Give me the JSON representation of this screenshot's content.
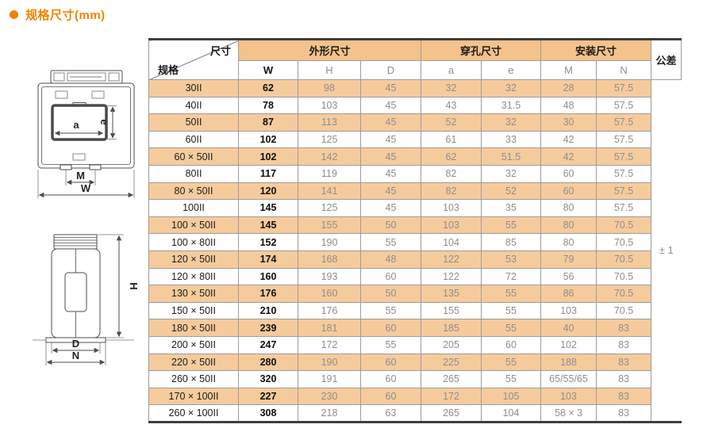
{
  "page_title": "规格尺寸(mm)",
  "table": {
    "corner": {
      "top_right": "尺寸",
      "bottom_left": "规格"
    },
    "col_groups": [
      {
        "label": "外形尺寸",
        "cols": [
          "W",
          "H",
          "D"
        ]
      },
      {
        "label": "穿孔尺寸",
        "cols": [
          "a",
          "e"
        ]
      },
      {
        "label": "安装尺寸",
        "cols": [
          "M",
          "N"
        ]
      }
    ],
    "tolerance_header": "公差",
    "tolerance_value": "± 1",
    "rows": [
      {
        "spec": "30II",
        "values": [
          "62",
          "98",
          "45",
          "32",
          "32",
          "28",
          "57.5"
        ]
      },
      {
        "spec": "40II",
        "values": [
          "78",
          "103",
          "45",
          "43",
          "31.5",
          "48",
          "57.5"
        ]
      },
      {
        "spec": "50II",
        "values": [
          "87",
          "113",
          "45",
          "52",
          "32",
          "30",
          "57.5"
        ]
      },
      {
        "spec": "60II",
        "values": [
          "102",
          "125",
          "45",
          "61",
          "33",
          "42",
          "57.5"
        ]
      },
      {
        "spec": "60 × 50II",
        "values": [
          "102",
          "142",
          "45",
          "62",
          "51.5",
          "42",
          "57.5"
        ]
      },
      {
        "spec": "80II",
        "values": [
          "117",
          "119",
          "45",
          "82",
          "32",
          "60",
          "57.5"
        ]
      },
      {
        "spec": "80 × 50II",
        "values": [
          "120",
          "141",
          "45",
          "82",
          "52",
          "60",
          "57.5"
        ]
      },
      {
        "spec": "100II",
        "values": [
          "145",
          "125",
          "45",
          "103",
          "35",
          "80",
          "57.5"
        ]
      },
      {
        "spec": "100 × 50II",
        "values": [
          "145",
          "155",
          "50",
          "103",
          "55",
          "80",
          "70.5"
        ]
      },
      {
        "spec": "100 × 80II",
        "values": [
          "152",
          "190",
          "55",
          "104",
          "85",
          "80",
          "70.5"
        ]
      },
      {
        "spec": "120 × 50II",
        "values": [
          "174",
          "168",
          "48",
          "122",
          "53",
          "79",
          "70.5"
        ]
      },
      {
        "spec": "120 × 80II",
        "values": [
          "160",
          "193",
          "60",
          "122",
          "72",
          "56",
          "70.5"
        ]
      },
      {
        "spec": "130 × 50II",
        "values": [
          "176",
          "160",
          "50",
          "135",
          "55",
          "86",
          "70.5"
        ]
      },
      {
        "spec": "150 × 50II",
        "values": [
          "210",
          "176",
          "55",
          "155",
          "55",
          "103",
          "70.5"
        ]
      },
      {
        "spec": "180 × 50II",
        "values": [
          "239",
          "181",
          "60",
          "185",
          "55",
          "40",
          "83"
        ]
      },
      {
        "spec": "200 × 50II",
        "values": [
          "247",
          "172",
          "55",
          "205",
          "60",
          "102",
          "83"
        ]
      },
      {
        "spec": "220 × 50II",
        "values": [
          "280",
          "190",
          "60",
          "225",
          "55",
          "188",
          "83"
        ]
      },
      {
        "spec": "260 × 50II",
        "values": [
          "320",
          "191",
          "60",
          "265",
          "55",
          "65/55/65",
          "83"
        ]
      },
      {
        "spec": "170 × 100II",
        "values": [
          "227",
          "230",
          "60",
          "172",
          "105",
          "103",
          "83"
        ]
      },
      {
        "spec": "260 × 100II",
        "values": [
          "308",
          "218",
          "63",
          "265",
          "104",
          "58 × 3",
          "83"
        ]
      }
    ]
  },
  "front_view": {
    "aperture_width_label": "a",
    "aperture_height_label": "e",
    "mount_label": "M",
    "width_label": "W"
  },
  "side_view": {
    "height_label": "H",
    "depth_label": "D",
    "base_label": "N"
  },
  "colors": {
    "accent_orange": "#F08300",
    "header_fill": "#F4C28A",
    "row_fill": "#F6CB9C",
    "grid_line": "#9C9C9C",
    "thick_line": "#3F3F3F",
    "text_dark": "#1C1C1C",
    "text_gray": "#8E8E8E",
    "diagram_line": "#4D4D4D"
  }
}
